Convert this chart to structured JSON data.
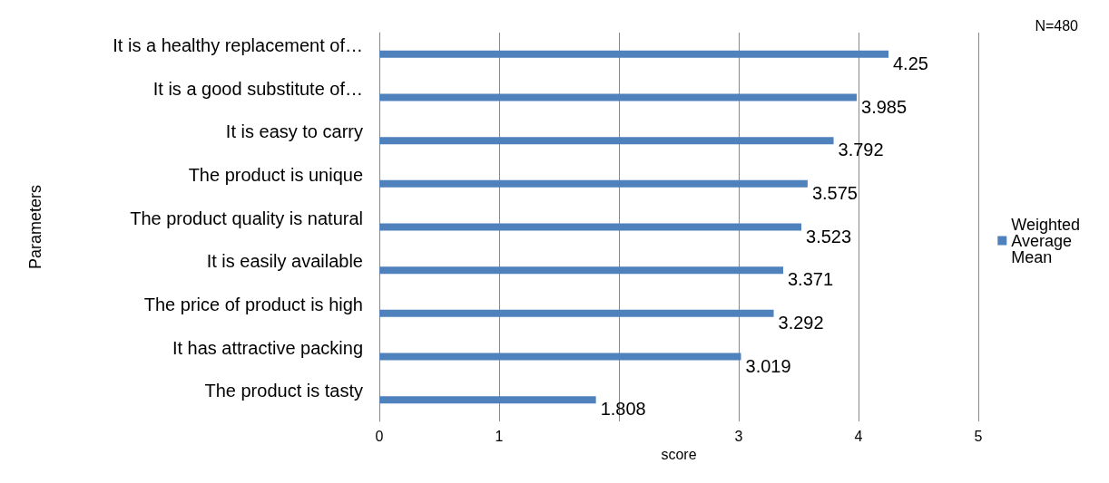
{
  "chart_data": {
    "type": "bar",
    "orientation": "horizontal",
    "xlabel": "score",
    "ylabel": "Parameters",
    "categories": [
      "It is a healthy replacement of…",
      "It is a good substitute of…",
      "It is easy to carry",
      "The product is unique",
      "The product quality is natural",
      "It is easily available",
      "The price of product is high",
      "It has attractive packing",
      "The product is tasty"
    ],
    "series": [
      {
        "name": "Weighted Average Mean",
        "color": "#4f81bd",
        "values": [
          4.25,
          3.985,
          3.792,
          3.575,
          3.523,
          3.371,
          3.292,
          3.019,
          1.808
        ]
      }
    ],
    "xlim": [
      0,
      5
    ],
    "xticks": [
      0,
      1,
      {
        "value": 2,
        "label": null
      },
      3,
      4,
      5
    ],
    "grid": "x",
    "legend": "right",
    "data_labels": true,
    "annotations": [
      "N=480"
    ]
  }
}
